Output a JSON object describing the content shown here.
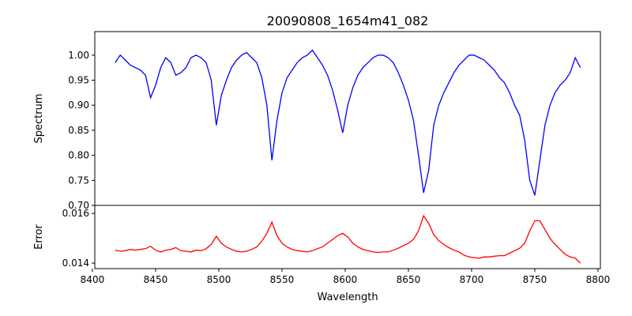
{
  "chart_data": [
    {
      "type": "line",
      "title": "20090808_1654m41_082",
      "xlabel": "",
      "ylabel": "Spectrum",
      "xlim": [
        8401.9,
        8801.9
      ],
      "ylim": [
        0.7,
        1.047
      ],
      "yticks": [
        "0.70",
        "0.75",
        "0.80",
        "0.85",
        "0.90",
        "0.95",
        "1.00"
      ],
      "color": "#0000ff",
      "x": [
        8418,
        8422,
        8426,
        8430,
        8434,
        8438,
        8442,
        8446,
        8450,
        8454,
        8458,
        8462,
        8466,
        8470,
        8474,
        8478,
        8482,
        8486,
        8490,
        8494,
        8498,
        8502,
        8506,
        8510,
        8514,
        8518,
        8522,
        8526,
        8530,
        8534,
        8538,
        8542,
        8546,
        8550,
        8554,
        8558,
        8562,
        8566,
        8570,
        8574,
        8578,
        8582,
        8586,
        8590,
        8594,
        8598,
        8602,
        8606,
        8610,
        8614,
        8618,
        8622,
        8626,
        8630,
        8634,
        8638,
        8642,
        8646,
        8650,
        8654,
        8658,
        8662,
        8666,
        8670,
        8674,
        8678,
        8682,
        8686,
        8690,
        8694,
        8698,
        8702,
        8706,
        8710,
        8714,
        8718,
        8722,
        8726,
        8730,
        8734,
        8738,
        8742,
        8746,
        8750,
        8754,
        8758,
        8762,
        8766,
        8770,
        8774,
        8778,
        8782,
        8786
      ],
      "values": [
        0.985,
        1.0,
        0.99,
        0.98,
        0.975,
        0.97,
        0.96,
        0.915,
        0.94,
        0.975,
        0.995,
        0.985,
        0.96,
        0.965,
        0.975,
        0.995,
        1.0,
        0.995,
        0.985,
        0.95,
        0.86,
        0.92,
        0.95,
        0.975,
        0.99,
        1.0,
        1.005,
        0.995,
        0.985,
        0.955,
        0.9,
        0.79,
        0.87,
        0.925,
        0.955,
        0.97,
        0.985,
        0.995,
        1.0,
        1.01,
        0.995,
        0.98,
        0.96,
        0.93,
        0.89,
        0.845,
        0.9,
        0.935,
        0.96,
        0.975,
        0.985,
        0.995,
        1.0,
        1.0,
        0.995,
        0.985,
        0.965,
        0.94,
        0.91,
        0.87,
        0.8,
        0.725,
        0.77,
        0.86,
        0.9,
        0.925,
        0.945,
        0.965,
        0.98,
        0.99,
        1.0,
        1.0,
        0.995,
        0.99,
        0.98,
        0.97,
        0.955,
        0.945,
        0.925,
        0.9,
        0.88,
        0.83,
        0.75,
        0.72,
        0.79,
        0.86,
        0.9,
        0.925,
        0.94,
        0.95,
        0.965,
        0.995,
        0.975
      ]
    },
    {
      "type": "line",
      "xlabel": "Wavelength",
      "ylabel": "Error",
      "xlim": [
        8401.9,
        8801.9
      ],
      "ylim": [
        0.01378,
        0.01632
      ],
      "xticks": [
        "8400",
        "8450",
        "8500",
        "8550",
        "8600",
        "8650",
        "8700",
        "8750",
        "8800"
      ],
      "yticks": [
        "0.014",
        "0.016"
      ],
      "color": "#ff0000",
      "x": [
        8418,
        8422,
        8426,
        8430,
        8434,
        8438,
        8442,
        8446,
        8450,
        8454,
        8458,
        8462,
        8466,
        8470,
        8474,
        8478,
        8482,
        8486,
        8490,
        8494,
        8498,
        8502,
        8506,
        8510,
        8514,
        8518,
        8522,
        8526,
        8530,
        8534,
        8538,
        8542,
        8546,
        8550,
        8554,
        8558,
        8562,
        8566,
        8570,
        8574,
        8578,
        8582,
        8586,
        8590,
        8594,
        8598,
        8602,
        8606,
        8610,
        8614,
        8618,
        8622,
        8626,
        8630,
        8634,
        8638,
        8642,
        8646,
        8650,
        8654,
        8658,
        8662,
        8666,
        8670,
        8674,
        8678,
        8682,
        8686,
        8690,
        8694,
        8698,
        8702,
        8706,
        8710,
        8714,
        8718,
        8722,
        8726,
        8730,
        8734,
        8738,
        8742,
        8746,
        8750,
        8754,
        8758,
        8762,
        8766,
        8770,
        8774,
        8778,
        8782,
        8786
      ],
      "values": [
        0.01452,
        0.01448,
        0.0145,
        0.01455,
        0.01452,
        0.01455,
        0.01458,
        0.01468,
        0.01452,
        0.01445,
        0.01452,
        0.01455,
        0.01462,
        0.0145,
        0.01448,
        0.01445,
        0.01452,
        0.0145,
        0.01458,
        0.01475,
        0.01508,
        0.0148,
        0.01465,
        0.01455,
        0.01448,
        0.01445,
        0.01448,
        0.01455,
        0.01465,
        0.01488,
        0.0152,
        0.01565,
        0.0151,
        0.0148,
        0.01465,
        0.01455,
        0.0145,
        0.01448,
        0.01445,
        0.0145,
        0.01458,
        0.01465,
        0.0148,
        0.01495,
        0.0151,
        0.0152,
        0.01505,
        0.0148,
        0.01465,
        0.01455,
        0.0145,
        0.01445,
        0.01443,
        0.01445,
        0.01445,
        0.01452,
        0.0146,
        0.0147,
        0.0148,
        0.01495,
        0.0153,
        0.0159,
        0.0156,
        0.01515,
        0.0149,
        0.01475,
        0.01462,
        0.01452,
        0.01445,
        0.01432,
        0.01425,
        0.01422,
        0.0142,
        0.01425,
        0.01425,
        0.01428,
        0.0143,
        0.0143,
        0.0144,
        0.0145,
        0.0146,
        0.0148,
        0.0153,
        0.0157,
        0.0157,
        0.01535,
        0.015,
        0.01475,
        0.01455,
        0.01435,
        0.01425,
        0.0142,
        0.014
      ]
    }
  ]
}
